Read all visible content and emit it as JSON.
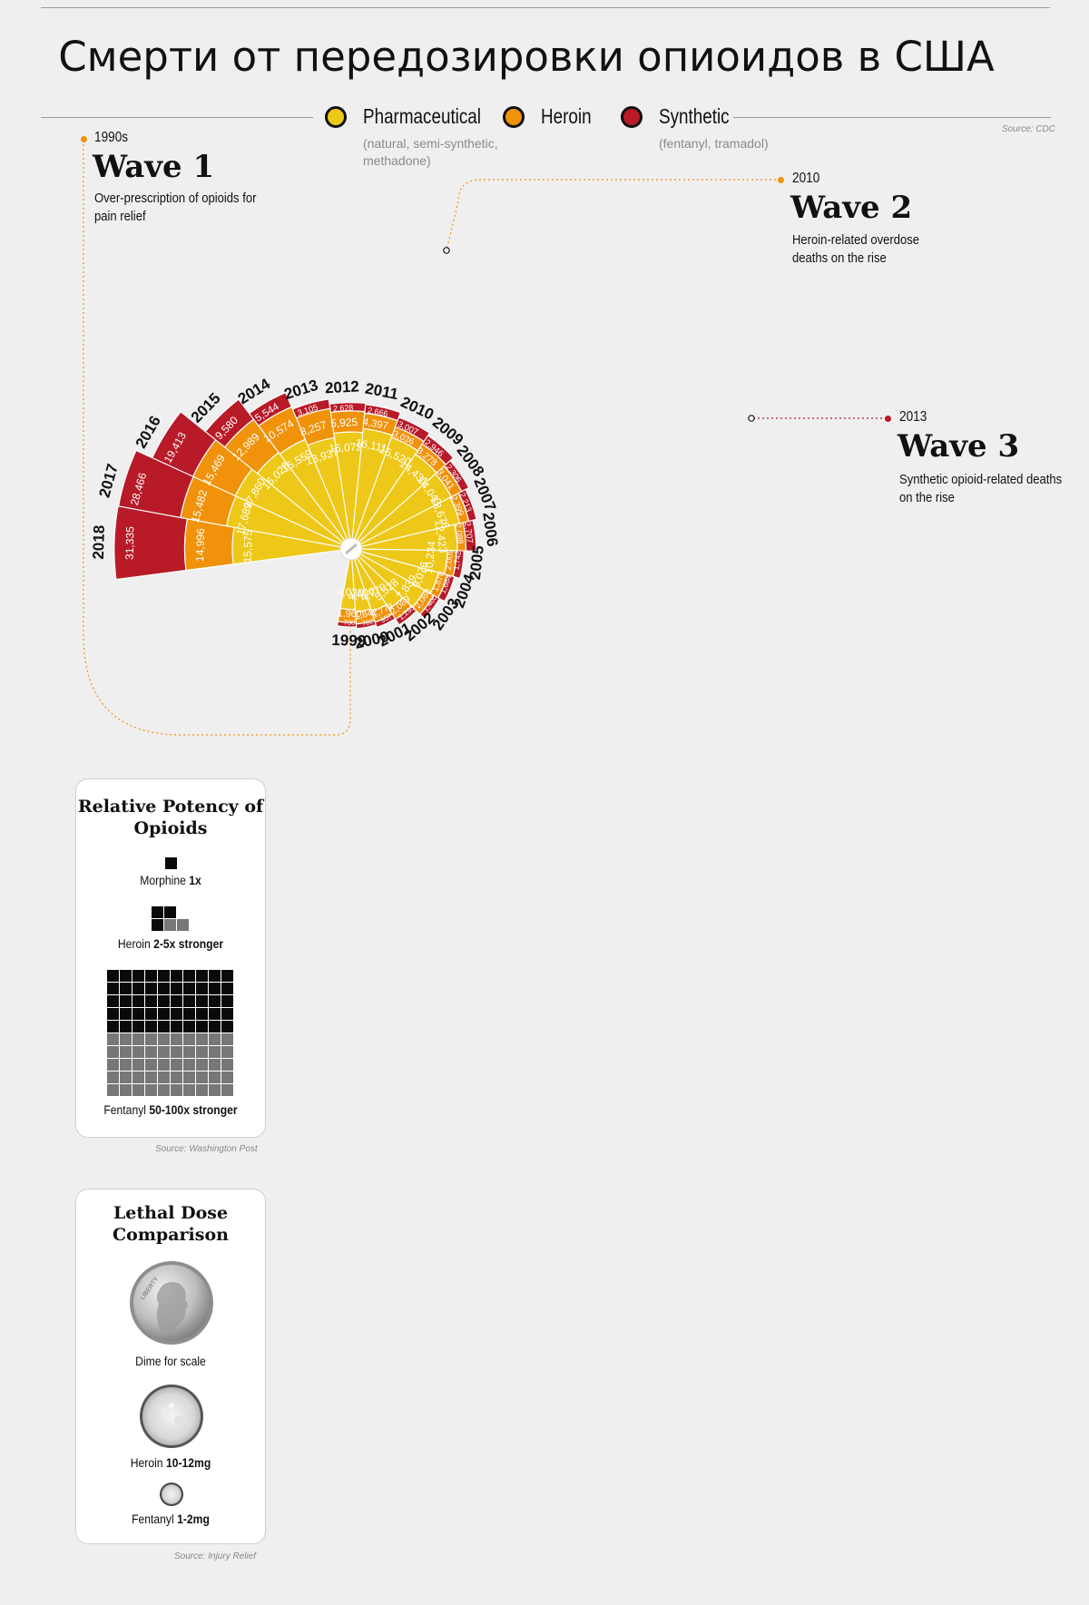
{
  "title": "Смерти от передозировки опиоидов в США",
  "source_main": "Source: CDC",
  "legend": [
    {
      "name": "Pharmaceutical",
      "sub": "(natural, semi-synthetic, methadone)",
      "color": "#edc818"
    },
    {
      "name": "Heroin",
      "sub": "",
      "color": "#f0920a"
    },
    {
      "name": "Synthetic",
      "sub": "(fentanyl, tramadol)",
      "color": "#b81a28"
    }
  ],
  "waves": [
    {
      "period": "1990s",
      "title": "Wave 1",
      "desc": "Over-prescription of opioids for pain relief",
      "dot_color": "#f0920a"
    },
    {
      "period": "2010",
      "title": "Wave 2",
      "desc": "Heroin-related overdose deaths on the rise",
      "dot_color": "#f0920a"
    },
    {
      "period": "2013",
      "title": "Wave 3",
      "desc": "Synthetic opioid-related deaths on the rise",
      "dot_color": "#b81a28"
    }
  ],
  "chart_data": {
    "type": "bar",
    "subtype": "stacked radial (polar) bar",
    "title": "Смерти от передозировки опиоидов в США",
    "categories": [
      "1999",
      "2000",
      "2001",
      "2002",
      "2003",
      "2004",
      "2005",
      "2006",
      "2007",
      "2008",
      "2009",
      "2010",
      "2011",
      "2012",
      "2013",
      "2014",
      "2015",
      "2016",
      "2017",
      "2018"
    ],
    "series": [
      {
        "name": "Pharmaceutical",
        "color": "#edc818",
        "values": [
          4030,
          4400,
          4770,
          5528,
          7839,
          9076,
          10234,
          12423,
          13676,
          14043,
          14431,
          15520,
          16111,
          15072,
          13937,
          15559,
          16028,
          17860,
          17689,
          15575
        ]
      },
      {
        "name": "Heroin",
        "color": "#f0920a",
        "values": [
          1960,
          1842,
          1779,
          2089,
          2080,
          1878,
          2009,
          2088,
          2399,
          3041,
          3278,
          3036,
          4397,
          5925,
          8257,
          10574,
          12989,
          15469,
          15482,
          14996
        ]
      },
      {
        "name": "Synthetic",
        "color": "#b81a28",
        "values": [
          730,
          782,
          957,
          1295,
          1400,
          1664,
          1742,
          2707,
          2213,
          2306,
          2946,
          3007,
          2666,
          2628,
          3105,
          5544,
          9580,
          19413,
          28466,
          31335
        ]
      }
    ],
    "label_precision": "some small-value labels are estimates"
  },
  "potency": {
    "title": "Relative Potency of Opioids",
    "items": [
      {
        "name": "Morphine",
        "value": "1x"
      },
      {
        "name": "Heroin",
        "value": "2-5x stronger"
      },
      {
        "name": "Fentanyl",
        "value": "50-100x stronger"
      }
    ],
    "source": "Source: Washington Post"
  },
  "lethal": {
    "title": "Lethal Dose Comparison",
    "items": [
      {
        "name": "Dime for scale",
        "value": ""
      },
      {
        "name": "Heroin",
        "value": "10-12mg"
      },
      {
        "name": "Fentanyl",
        "value": "1-2mg"
      }
    ],
    "coin_text": "LIBERTY",
    "source": "Source: Injury Relief"
  }
}
